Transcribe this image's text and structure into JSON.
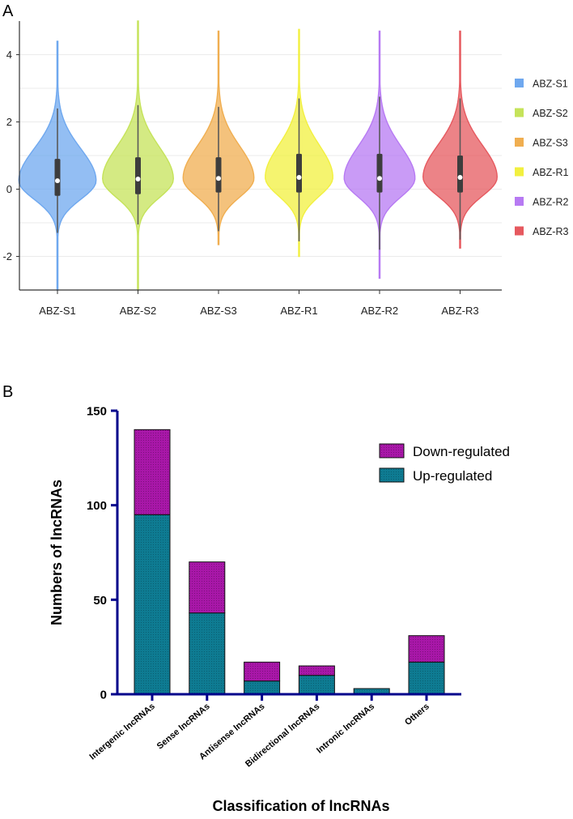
{
  "chart_data": [
    {
      "panel_label": "A",
      "type": "violin",
      "categories": [
        "ABZ-S1",
        "ABZ-S2",
        "ABZ-S3",
        "ABZ-R1",
        "ABZ-R2",
        "ABZ-R3"
      ],
      "colors": [
        "#6fa8ef",
        "#c5e35a",
        "#f0ae50",
        "#f2f03f",
        "#b77af3",
        "#e6595f"
      ],
      "ylim": [
        -3,
        5
      ],
      "yticks": [
        -2,
        0,
        2,
        4
      ],
      "series": [
        {
          "name": "ABZ-S1",
          "min": -3.0,
          "max": 4.4,
          "q1": -0.2,
          "median": 0.25,
          "q3": 0.9,
          "whisker_low": -1.3,
          "whisker_high": 2.4,
          "width_max": 0.48
        },
        {
          "name": "ABZ-S2",
          "min": -3.0,
          "max": 5.0,
          "q1": -0.15,
          "median": 0.3,
          "q3": 0.95,
          "whisker_low": -1.05,
          "whisker_high": 2.5,
          "width_max": 0.44
        },
        {
          "name": "ABZ-S3",
          "min": -1.65,
          "max": 4.7,
          "q1": -0.1,
          "median": 0.32,
          "q3": 0.95,
          "whisker_low": -1.25,
          "whisker_high": 2.45,
          "width_max": 0.44
        },
        {
          "name": "ABZ-R1",
          "min": -2.0,
          "max": 4.75,
          "q1": -0.1,
          "median": 0.35,
          "q3": 1.05,
          "whisker_low": -1.55,
          "whisker_high": 2.7,
          "width_max": 0.42
        },
        {
          "name": "ABZ-R2",
          "min": -2.65,
          "max": 4.7,
          "q1": -0.1,
          "median": 0.32,
          "q3": 1.05,
          "whisker_low": -1.8,
          "whisker_high": 2.75,
          "width_max": 0.44
        },
        {
          "name": "ABZ-R3",
          "min": -1.75,
          "max": 4.7,
          "q1": -0.1,
          "median": 0.35,
          "q3": 1.0,
          "whisker_low": -1.5,
          "whisker_high": 2.7,
          "width_max": 0.46
        }
      ],
      "legend": [
        "ABZ-S1",
        "ABZ-S2",
        "ABZ-S3",
        "ABZ-R1",
        "ABZ-R2",
        "ABZ-R3"
      ],
      "legend_position": "right",
      "grid": true
    },
    {
      "panel_label": "B",
      "type": "bar",
      "stacked": true,
      "categories": [
        "Intergenic lncRNAs",
        "Sense lncRNAs",
        "Antisense lncRNAs",
        "Bidirectional lncRNAs",
        "Intronic lncRNAs",
        "Others"
      ],
      "series": [
        {
          "name": "Up-regulated",
          "values": [
            95,
            43,
            7,
            10,
            3,
            17
          ],
          "color": "#0e7b92"
        },
        {
          "name": "Down-regulated",
          "values": [
            45,
            27,
            10,
            5,
            0,
            14
          ],
          "color": "#a817a8"
        }
      ],
      "ylim": [
        0,
        150
      ],
      "yticks": [
        0,
        50,
        100,
        150
      ],
      "ylabel": "Numbers of lncRNAs",
      "xlabel": "Classification of lncRNAs",
      "legend": [
        "Down-regulated",
        "Up-regulated"
      ],
      "legend_position": "top-right",
      "grid": false
    }
  ]
}
